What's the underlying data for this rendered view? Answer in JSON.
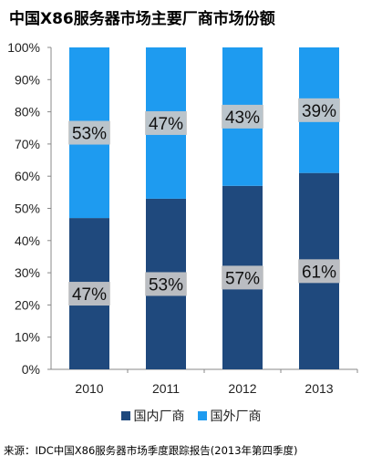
{
  "title": "中国X86服务器市场主要厂商市场份额",
  "source": "来源：IDC中国X86服务器市场季度跟踪报告(2013年第四季度)",
  "colors": {
    "domestic": "#1f497d",
    "foreign": "#1e9bf0",
    "label_bg": "#c8c8c8"
  },
  "chart_data": {
    "type": "bar",
    "stacked": true,
    "categories": [
      "2010",
      "2011",
      "2012",
      "2013"
    ],
    "series": [
      {
        "name": "国内厂商",
        "values": [
          47,
          53,
          57,
          61
        ],
        "labels": [
          "47%",
          "53%",
          "57%",
          "61%"
        ]
      },
      {
        "name": "国外厂商",
        "values": [
          53,
          47,
          43,
          39
        ],
        "labels": [
          "53%",
          "47%",
          "43%",
          "39%"
        ]
      }
    ],
    "yticks": [
      "0%",
      "10%",
      "20%",
      "30%",
      "40%",
      "50%",
      "60%",
      "70%",
      "80%",
      "90%",
      "100%"
    ],
    "ylim": [
      0,
      100
    ],
    "legend_position": "bottom",
    "grid": false
  }
}
